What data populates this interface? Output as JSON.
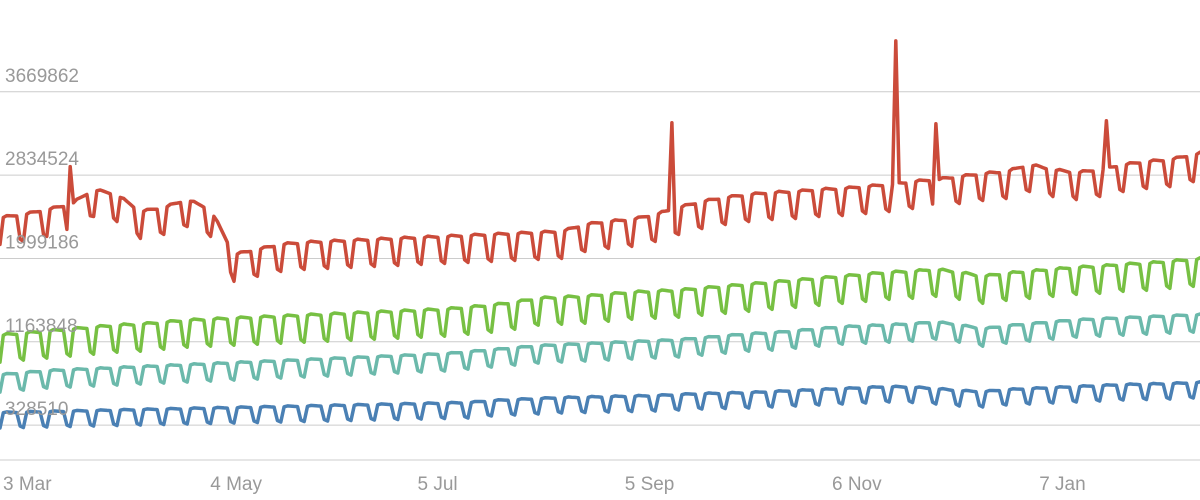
{
  "chart_data": {
    "type": "line",
    "title": "",
    "xlabel": "",
    "ylabel": "",
    "grid": true,
    "legend": "none",
    "x_start": "3 Mar",
    "x_end_approx": "22 Feb",
    "y_ticks": [
      {
        "value": 328510,
        "label": "328510"
      },
      {
        "value": 1163848,
        "label": "1163848"
      },
      {
        "value": 1999186,
        "label": "1999186"
      },
      {
        "value": 2834524,
        "label": "2834524"
      },
      {
        "value": 3669862,
        "label": "3669862"
      }
    ],
    "x_ticks": [
      "3 Mar",
      "4 May",
      "5 Jul",
      "5 Sep",
      "6 Nov",
      "7 Jan"
    ],
    "ylim": [
      -21000,
      4590000
    ],
    "colors": {
      "red": "#cb4b3a",
      "green": "#77c043",
      "teal": "#6bb9ab",
      "blue": "#4a80b4"
    },
    "series": [
      {
        "color": "#cb4b3a",
        "weekly_points": [
          2420000,
          2450000,
          2500000,
          2550000,
          2700000,
          2650000,
          2480000,
          2520000,
          2600000,
          2500000,
          2050000,
          2100000,
          2150000,
          2170000,
          2180000,
          2190000,
          2200000,
          2210000,
          2220000,
          2230000,
          2240000,
          2250000,
          2260000,
          2270000,
          2280000,
          2350000,
          2380000,
          2400000,
          2450000,
          2520000,
          2580000,
          2620000,
          2650000,
          2670000,
          2680000,
          2700000,
          2710000,
          2730000,
          2750000,
          2780000,
          2800000,
          2830000,
          2860000,
          2880000,
          2950000,
          2900000,
          2870000,
          2900000,
          2950000,
          2980000,
          3000000,
          3050000
        ],
        "weekday_dip": 280000,
        "spikes": [
          {
            "day": 21,
            "value": 2920000
          },
          {
            "day": 201,
            "value": 3360000
          },
          {
            "day": 268,
            "value": 4180000
          },
          {
            "day": 280,
            "value": 3350000
          },
          {
            "day": 331,
            "value": 3380000
          }
        ]
      },
      {
        "color": "#77c043",
        "weekly_points": [
          1240000,
          1260000,
          1280000,
          1300000,
          1320000,
          1340000,
          1350000,
          1370000,
          1390000,
          1400000,
          1410000,
          1420000,
          1430000,
          1440000,
          1450000,
          1460000,
          1470000,
          1480000,
          1490000,
          1500000,
          1520000,
          1540000,
          1570000,
          1610000,
          1620000,
          1630000,
          1650000,
          1670000,
          1680000,
          1690000,
          1710000,
          1730000,
          1750000,
          1770000,
          1790000,
          1810000,
          1830000,
          1850000,
          1870000,
          1880000,
          1900000,
          1870000,
          1830000,
          1860000,
          1880000,
          1900000,
          1920000,
          1930000,
          1950000,
          1960000,
          1980000,
          2000000
        ],
        "weekday_dip": 280000,
        "spikes": []
      },
      {
        "color": "#6bb9ab",
        "weekly_points": [
          840000,
          860000,
          880000,
          890000,
          900000,
          910000,
          920000,
          930000,
          940000,
          950000,
          960000,
          970000,
          980000,
          990000,
          1000000,
          1010000,
          1020000,
          1030000,
          1040000,
          1050000,
          1070000,
          1090000,
          1110000,
          1130000,
          1140000,
          1150000,
          1160000,
          1170000,
          1180000,
          1190000,
          1210000,
          1230000,
          1250000,
          1260000,
          1280000,
          1300000,
          1320000,
          1330000,
          1340000,
          1350000,
          1370000,
          1340000,
          1300000,
          1330000,
          1350000,
          1370000,
          1390000,
          1400000,
          1410000,
          1420000,
          1430000,
          1440000
        ],
        "weekday_dip": 180000,
        "spikes": []
      },
      {
        "color": "#4a80b4",
        "weekly_points": [
          460000,
          465000,
          470000,
          475000,
          480000,
          485000,
          490000,
          495000,
          500000,
          505000,
          510000,
          515000,
          520000,
          525000,
          530000,
          535000,
          540000,
          545000,
          550000,
          555000,
          560000,
          580000,
          590000,
          600000,
          610000,
          615000,
          620000,
          625000,
          630000,
          640000,
          650000,
          655000,
          660000,
          670000,
          680000,
          690000,
          700000,
          710000,
          720000,
          715000,
          700000,
          680000,
          670000,
          690000,
          700000,
          710000,
          720000,
          730000,
          740000,
          745000,
          750000,
          760000
        ],
        "weekday_dip": 160000,
        "spikes": []
      }
    ]
  }
}
